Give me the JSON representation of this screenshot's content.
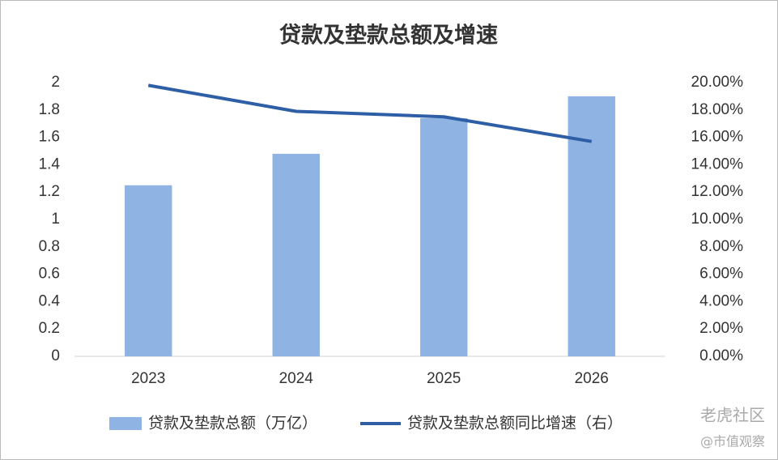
{
  "chart_data": {
    "type": "bar_line",
    "title": "贷款及垫款总额及增速",
    "categories": [
      "2023",
      "2024",
      "2025",
      "2026"
    ],
    "series": [
      {
        "name": "贷款及垫款总额（万亿）",
        "type": "bar",
        "color": "#8fb4e3",
        "values": [
          1.25,
          1.48,
          1.74,
          1.9
        ]
      },
      {
        "name": "贷款及垫款总额同比增速（右）",
        "type": "line",
        "axis": "y2",
        "color": "#2e5fa6",
        "values": [
          19.8,
          17.9,
          17.5,
          15.7
        ]
      }
    ],
    "ylim": [
      0,
      2
    ],
    "yticks": [
      0,
      0.2,
      0.4,
      0.6,
      0.8,
      1,
      1.2,
      1.4,
      1.6,
      1.8,
      2
    ],
    "y2lim": [
      0,
      20
    ],
    "y2ticks": [
      {
        "value": 0,
        "label": "0.00%"
      },
      {
        "value": 2,
        "label": "2.00%"
      },
      {
        "value": 4,
        "label": "4.00%"
      },
      {
        "value": 6,
        "label": "6.00%"
      },
      {
        "value": 8,
        "label": "8.00%"
      },
      {
        "value": 10,
        "label": "10.00%"
      },
      {
        "value": 12,
        "label": "12.00%"
      },
      {
        "value": 14,
        "label": "14.00%"
      },
      {
        "value": 16,
        "label": "16.00%"
      },
      {
        "value": 18,
        "label": "18.00%"
      },
      {
        "value": 20,
        "label": "20.00%"
      }
    ],
    "grid": false,
    "legend": "bottom",
    "watermarks": [
      "老虎社区",
      "@市值观察"
    ]
  }
}
